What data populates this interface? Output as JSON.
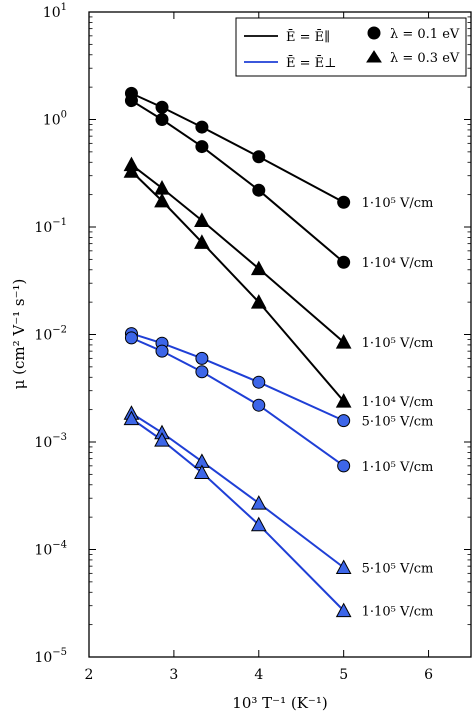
{
  "chart_data": {
    "type": "line",
    "xlabel": "10³ T⁻¹  (K⁻¹)",
    "ylabel": "μ (cm² V⁻¹ s⁻¹)",
    "xlim": [
      2,
      6.5
    ],
    "ylim": [
      1e-05,
      10
    ],
    "yscale": "log",
    "grid": false,
    "legend_position": "top-right",
    "x_ticks": [
      2,
      3,
      4,
      5,
      6
    ],
    "y_ticks": [
      {
        "value": 10,
        "base": "10",
        "exp": "1"
      },
      {
        "value": 1,
        "base": "10",
        "exp": "0"
      },
      {
        "value": 0.1,
        "base": "10",
        "exp": "−1"
      },
      {
        "value": 0.01,
        "base": "10",
        "exp": "−2"
      },
      {
        "value": 0.001,
        "base": "10",
        "exp": "−3"
      },
      {
        "value": 0.0001,
        "base": "10",
        "exp": "−4"
      },
      {
        "value": 1e-05,
        "base": "10",
        "exp": "−5"
      }
    ],
    "legend": {
      "line_entries": [
        {
          "label": "Ē = Ē∥",
          "color": "#000000"
        },
        {
          "label": "Ē = Ē⊥",
          "color": "#1f3fd6"
        }
      ],
      "marker_entries": [
        {
          "label": "λ = 0.1 eV",
          "marker": "circle"
        },
        {
          "label": "λ = 0.3 eV",
          "marker": "triangle"
        }
      ]
    },
    "series": [
      {
        "line_color": "#000000",
        "fill_color": "#000000",
        "marker": "circle",
        "label": "1·10⁵  V/cm",
        "x": [
          2.5,
          2.86,
          3.33,
          4.0,
          5.0
        ],
        "y": [
          1.75,
          1.3,
          0.85,
          0.45,
          0.17
        ]
      },
      {
        "line_color": "#000000",
        "fill_color": "#000000",
        "marker": "circle",
        "label": "1·10⁴  V/cm",
        "x": [
          2.5,
          2.86,
          3.33,
          4.0,
          5.0
        ],
        "y": [
          1.5,
          1.0,
          0.56,
          0.22,
          0.047
        ]
      },
      {
        "line_color": "#000000",
        "fill_color": "#000000",
        "marker": "triangle",
        "label": "1·10⁵  V/cm",
        "x": [
          2.5,
          2.86,
          3.33,
          4.0,
          5.0
        ],
        "y": [
          0.38,
          0.23,
          0.115,
          0.041,
          0.0085
        ]
      },
      {
        "line_color": "#000000",
        "fill_color": "#000000",
        "marker": "triangle",
        "label": "1·10⁴  V/cm",
        "x": [
          2.5,
          2.86,
          3.33,
          4.0,
          5.0
        ],
        "y": [
          0.33,
          0.175,
          0.072,
          0.02,
          0.0024
        ]
      },
      {
        "line_color": "#1f3fd6",
        "fill_color": "#3d66e8",
        "marker": "circle",
        "label": "5·10⁵  V/cm",
        "x": [
          2.5,
          2.86,
          3.33,
          4.0,
          5.0
        ],
        "y": [
          0.0102,
          0.0083,
          0.006,
          0.0036,
          0.00158
        ]
      },
      {
        "line_color": "#1f3fd6",
        "fill_color": "#3d66e8",
        "marker": "circle",
        "label": "1·10⁵  V/cm",
        "x": [
          2.5,
          2.86,
          3.33,
          4.0,
          5.0
        ],
        "y": [
          0.0093,
          0.007,
          0.0045,
          0.0022,
          0.0006
        ]
      },
      {
        "line_color": "#1f3fd6",
        "fill_color": "#3d66e8",
        "marker": "triangle",
        "label": "5·10⁵  V/cm",
        "x": [
          2.5,
          2.86,
          3.33,
          4.0,
          5.0
        ],
        "y": [
          0.00185,
          0.00122,
          0.00066,
          0.00027,
          6.8e-05
        ]
      },
      {
        "line_color": "#1f3fd6",
        "fill_color": "#3d66e8",
        "marker": "triangle",
        "label": "1·10⁵  V/cm",
        "x": [
          2.5,
          2.86,
          3.33,
          4.0,
          5.0
        ],
        "y": [
          0.00165,
          0.00104,
          0.00052,
          0.00017,
          2.7e-05
        ]
      }
    ]
  }
}
